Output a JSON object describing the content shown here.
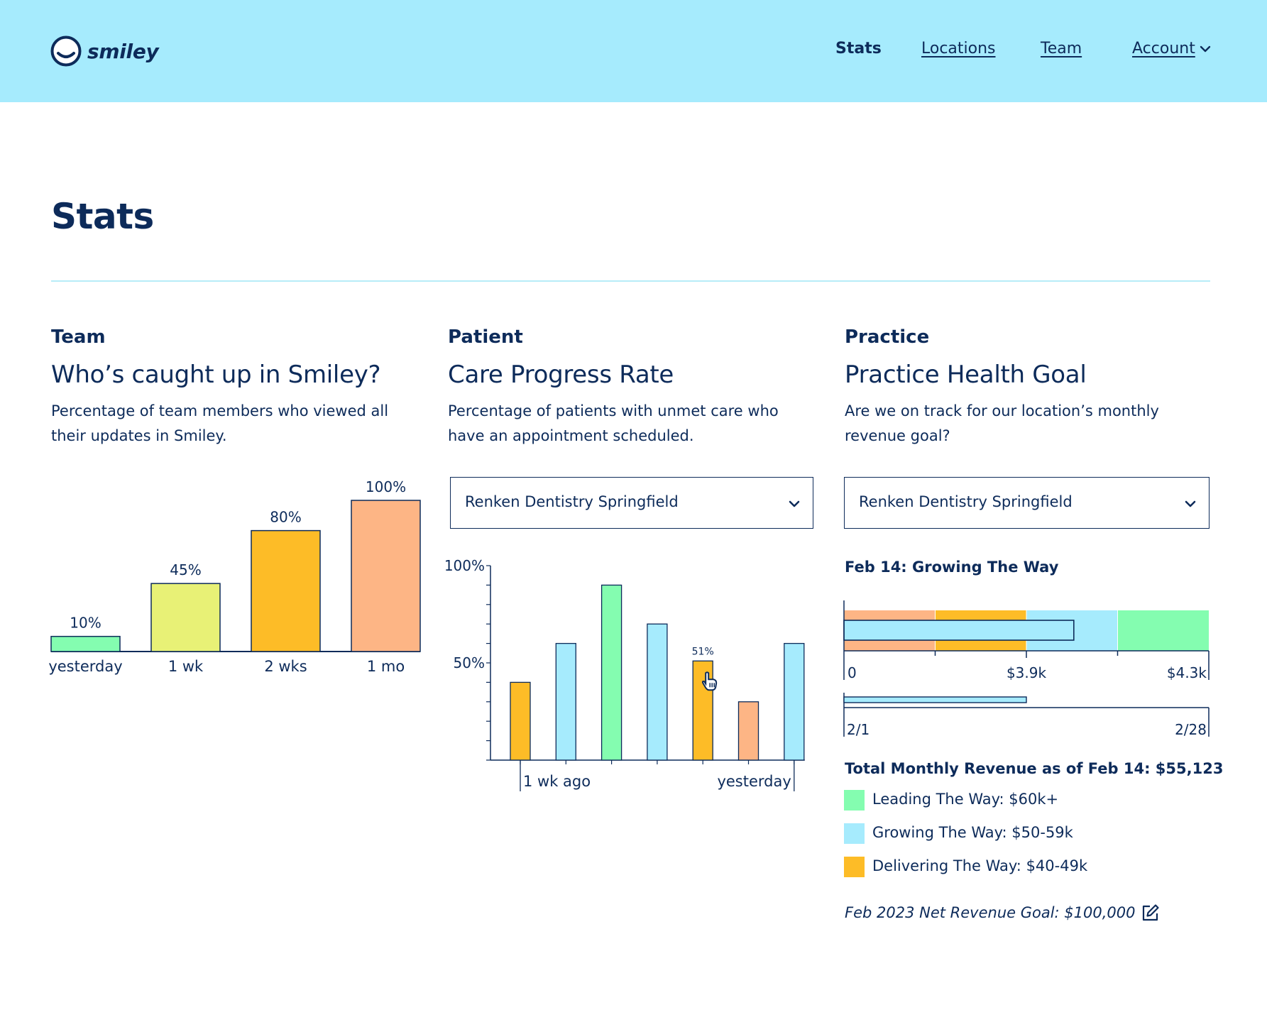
{
  "brand": {
    "name": "smiley",
    "icon": "smiley-face-icon"
  },
  "nav": {
    "items": [
      {
        "label": "Stats",
        "active": true
      },
      {
        "label": "Locations",
        "active": false
      },
      {
        "label": "Team",
        "active": false
      },
      {
        "label": "Account",
        "active": false,
        "has_dropdown": true
      }
    ]
  },
  "page": {
    "title": "Stats"
  },
  "colors": {
    "header_bg": "#a6ebfd",
    "ink": "#0d2b5a",
    "green": "#84fdb0",
    "yellow": "#e8f176",
    "gold": "#fdbc27",
    "peach": "#fdb585",
    "sky": "#a6ebfd",
    "divider": "#b7ecf8"
  },
  "team": {
    "eyebrow": "Team",
    "title": "Who’s caught up in Smiley?",
    "description": "Percentage of team members who viewed all their updates in Smiley."
  },
  "patient": {
    "eyebrow": "Patient",
    "title": "Care Progress Rate",
    "description": "Percentage of patients with unmet care who have an appointment scheduled.",
    "location_select": {
      "value": "Renken Dentistry Springfield"
    }
  },
  "practice": {
    "eyebrow": "Practice",
    "title": "Practice Health Goal",
    "description": "Are we on track for our location’s monthly revenue goal?",
    "location_select": {
      "value": "Renken Dentistry Springfield"
    },
    "status_heading": "Feb 14: Growing The Way",
    "total_heading": "Total Monthly Revenue as of Feb 14: $55,123",
    "legend": [
      {
        "label": "Leading The Way: $60k+",
        "color": "#84fdb0"
      },
      {
        "label": "Growing The Way: $50-59k",
        "color": "#a6ebfd"
      },
      {
        "label": "Delivering The Way: $40-49k",
        "color": "#fdbc27"
      }
    ],
    "goal_text": "Feb 2023 Net Revenue Goal: $100,000",
    "edit_icon": "edit-pencil-icon"
  },
  "chart_data": [
    {
      "id": "team-caught-up",
      "type": "bar",
      "title": "Who’s caught up in Smiley?",
      "xlabel": "",
      "ylabel": "",
      "ylim": [
        0,
        100
      ],
      "categories": [
        "yesterday",
        "1 wk",
        "2 wks",
        "1 mo"
      ],
      "values": [
        10,
        45,
        80,
        100
      ],
      "value_labels": [
        "10%",
        "45%",
        "80%",
        "100%"
      ],
      "bar_colors": [
        "#84fdb0",
        "#e8f176",
        "#fdbc27",
        "#fdb585"
      ],
      "grid": false
    },
    {
      "id": "care-progress-rate",
      "type": "bar",
      "title": "Care Progress Rate",
      "xlabel": "",
      "ylabel": "",
      "ylim": [
        0,
        100
      ],
      "yticks": [
        "50%",
        "100%"
      ],
      "ytick_values": [
        50,
        100
      ],
      "x_range_labels": [
        "1 wk ago",
        "yesterday"
      ],
      "values": [
        40,
        60,
        90,
        70,
        51,
        30,
        60
      ],
      "bar_colors": [
        "#fdbc27",
        "#a6ebfd",
        "#84fdb0",
        "#a6ebfd",
        "#fdbc27",
        "#fdb585",
        "#a6ebfd"
      ],
      "annotation": {
        "index": 4,
        "label": "51%"
      },
      "grid": false
    },
    {
      "id": "practice-health-bullet",
      "type": "bar",
      "title": "Feb 14: Growing The Way",
      "orientation": "horizontal",
      "revenue_axis": {
        "min_label": "0",
        "mid_label": "$3.9k",
        "max_label": "$4.3k"
      },
      "bands": [
        {
          "name": "below",
          "color": "#fdb585",
          "from": 0,
          "to": 0.25
        },
        {
          "name": "Delivering The Way",
          "color": "#fdbc27",
          "from": 0.25,
          "to": 0.5
        },
        {
          "name": "Growing The Way",
          "color": "#a6ebfd",
          "from": 0.5,
          "to": 0.75
        },
        {
          "name": "Leading The Way",
          "color": "#84fdb0",
          "from": 0.75,
          "to": 1.0
        }
      ],
      "actual_fraction": 0.63,
      "time_axis": {
        "start_label": "2/1",
        "end_label": "2/28"
      },
      "time_elapsed_fraction": 0.5
    }
  ]
}
